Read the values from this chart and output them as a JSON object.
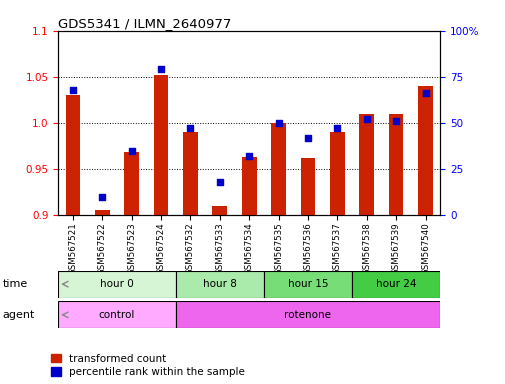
{
  "title": "GDS5341 / ILMN_2640977",
  "samples": [
    "GSM567521",
    "GSM567522",
    "GSM567523",
    "GSM567524",
    "GSM567532",
    "GSM567533",
    "GSM567534",
    "GSM567535",
    "GSM567536",
    "GSM567537",
    "GSM567538",
    "GSM567539",
    "GSM567540"
  ],
  "red_values": [
    1.03,
    0.905,
    0.968,
    1.052,
    0.99,
    0.91,
    0.963,
    1.0,
    0.962,
    0.99,
    1.01,
    1.01,
    1.04
  ],
  "blue_values": [
    68,
    10,
    35,
    79,
    47,
    18,
    32,
    50,
    42,
    47,
    52,
    51,
    66
  ],
  "ylim_left": [
    0.9,
    1.1
  ],
  "ylim_right": [
    0,
    100
  ],
  "yticks_left": [
    0.9,
    0.95,
    1.0,
    1.05,
    1.1
  ],
  "yticks_right": [
    0,
    25,
    50,
    75,
    100
  ],
  "ytick_labels_right": [
    "0",
    "25",
    "50",
    "75",
    "100%"
  ],
  "time_groups": [
    {
      "label": "hour 0",
      "start": 0,
      "end": 4,
      "color": "#d5f5d5"
    },
    {
      "label": "hour 8",
      "start": 4,
      "end": 7,
      "color": "#aaeaaa"
    },
    {
      "label": "hour 15",
      "start": 7,
      "end": 10,
      "color": "#77dd77"
    },
    {
      "label": "hour 24",
      "start": 10,
      "end": 13,
      "color": "#44cc44"
    }
  ],
  "agent_groups": [
    {
      "label": "control",
      "start": 0,
      "end": 4,
      "color": "#ffaaff"
    },
    {
      "label": "rotenone",
      "start": 4,
      "end": 13,
      "color": "#ee66ee"
    }
  ],
  "red_color": "#cc2200",
  "blue_color": "#0000cc",
  "bar_width": 0.5,
  "legend_red": "transformed count",
  "legend_blue": "percentile rank within the sample"
}
